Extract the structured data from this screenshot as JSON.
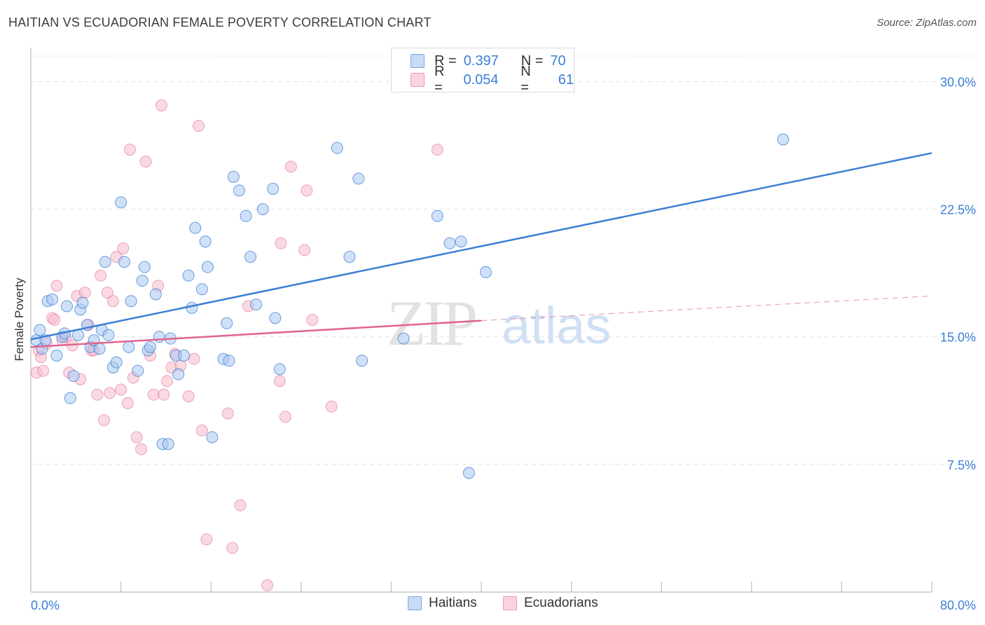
{
  "title": "HAITIAN VS ECUADORIAN FEMALE POVERTY CORRELATION CHART",
  "source": "Source: ZipAtlas.com",
  "watermark": {
    "zip": "ZIP",
    "atlas": "atlas"
  },
  "legend": {
    "rows": [
      {
        "r_label": "R =",
        "r_value": "0.397",
        "n_label": "N =",
        "n_value": "70",
        "color": "#a9c8f0"
      },
      {
        "r_label": "R =",
        "r_value": "0.054",
        "n_label": "N =",
        "n_value": "61",
        "color": "#f6b9cb"
      }
    ]
  },
  "bottom_legend": [
    "Haitians",
    "Ecuadorians"
  ],
  "chart_data": {
    "type": "scatter",
    "title": "HAITIAN VS ECUADORIAN FEMALE POVERTY CORRELATION CHART",
    "xlabel": "",
    "ylabel": "Female Poverty",
    "xlim": [
      0,
      80
    ],
    "ylim": [
      0,
      31.5
    ],
    "x_tick_labels": [
      "0.0%",
      "80.0%"
    ],
    "y_ticks": [
      7.5,
      15.0,
      22.5,
      30.0
    ],
    "y_tick_labels": [
      "7.5%",
      "15.0%",
      "22.5%",
      "30.0%"
    ],
    "grid": "horizontal dashed",
    "colors": {
      "haitians": "#3b7fd6",
      "haitians_fill": "#a9c8f0",
      "ecuadorians": "#e0648f",
      "ecuadorians_fill": "#f6b9cb"
    },
    "series": [
      {
        "name": "Haitians",
        "points": [
          [
            0.5,
            14.8
          ],
          [
            0.8,
            15.4
          ],
          [
            1.0,
            14.3
          ],
          [
            1.3,
            14.8
          ],
          [
            1.5,
            17.1
          ],
          [
            1.9,
            17.2
          ],
          [
            2.3,
            13.9
          ],
          [
            2.8,
            15.0
          ],
          [
            3.0,
            15.2
          ],
          [
            3.2,
            16.8
          ],
          [
            3.5,
            11.4
          ],
          [
            3.8,
            12.7
          ],
          [
            4.2,
            15.1
          ],
          [
            4.4,
            16.6
          ],
          [
            4.6,
            17.0
          ],
          [
            5.0,
            15.7
          ],
          [
            5.3,
            14.4
          ],
          [
            5.6,
            14.8
          ],
          [
            6.1,
            14.3
          ],
          [
            6.3,
            15.4
          ],
          [
            6.6,
            19.4
          ],
          [
            6.9,
            15.1
          ],
          [
            7.3,
            13.2
          ],
          [
            7.6,
            13.5
          ],
          [
            8.0,
            22.9
          ],
          [
            8.3,
            19.4
          ],
          [
            8.7,
            14.4
          ],
          [
            8.9,
            17.1
          ],
          [
            9.5,
            13.0
          ],
          [
            9.9,
            18.3
          ],
          [
            10.1,
            19.1
          ],
          [
            10.4,
            14.2
          ],
          [
            10.6,
            14.4
          ],
          [
            11.1,
            17.5
          ],
          [
            11.4,
            15.0
          ],
          [
            11.7,
            8.7
          ],
          [
            12.2,
            8.7
          ],
          [
            12.4,
            14.9
          ],
          [
            12.9,
            13.9
          ],
          [
            13.1,
            12.8
          ],
          [
            13.6,
            13.9
          ],
          [
            14.0,
            18.6
          ],
          [
            14.3,
            16.7
          ],
          [
            14.6,
            21.4
          ],
          [
            15.2,
            17.8
          ],
          [
            15.5,
            20.6
          ],
          [
            15.7,
            19.1
          ],
          [
            16.1,
            9.1
          ],
          [
            17.1,
            13.7
          ],
          [
            17.4,
            15.8
          ],
          [
            17.6,
            13.6
          ],
          [
            18.0,
            24.4
          ],
          [
            18.5,
            23.6
          ],
          [
            19.1,
            22.1
          ],
          [
            19.5,
            19.7
          ],
          [
            20.0,
            16.9
          ],
          [
            20.6,
            22.5
          ],
          [
            21.5,
            23.7
          ],
          [
            21.7,
            16.1
          ],
          [
            22.1,
            13.1
          ],
          [
            27.2,
            26.1
          ],
          [
            28.3,
            19.7
          ],
          [
            29.1,
            24.3
          ],
          [
            29.4,
            13.6
          ],
          [
            33.1,
            14.9
          ],
          [
            36.1,
            22.1
          ],
          [
            37.2,
            20.5
          ],
          [
            38.2,
            20.6
          ],
          [
            38.9,
            7.0
          ],
          [
            40.4,
            18.8
          ],
          [
            66.8,
            26.6
          ]
        ]
      },
      {
        "name": "Ecuadorians",
        "points": [
          [
            0.5,
            12.9
          ],
          [
            0.7,
            14.2
          ],
          [
            0.9,
            13.8
          ],
          [
            1.1,
            13.0
          ],
          [
            1.4,
            14.6
          ],
          [
            1.9,
            16.1
          ],
          [
            2.1,
            16.0
          ],
          [
            2.3,
            18.0
          ],
          [
            2.8,
            14.8
          ],
          [
            3.1,
            15.0
          ],
          [
            3.4,
            12.9
          ],
          [
            3.7,
            14.5
          ],
          [
            4.1,
            17.4
          ],
          [
            4.4,
            12.5
          ],
          [
            4.8,
            17.6
          ],
          [
            5.1,
            15.7
          ],
          [
            5.4,
            14.2
          ],
          [
            5.6,
            14.2
          ],
          [
            5.9,
            11.6
          ],
          [
            6.2,
            18.6
          ],
          [
            6.5,
            10.1
          ],
          [
            6.8,
            17.6
          ],
          [
            7.0,
            11.7
          ],
          [
            7.3,
            17.1
          ],
          [
            7.6,
            19.7
          ],
          [
            8.0,
            11.9
          ],
          [
            8.2,
            20.2
          ],
          [
            8.6,
            11.1
          ],
          [
            8.8,
            26.0
          ],
          [
            9.1,
            12.6
          ],
          [
            9.4,
            9.1
          ],
          [
            9.8,
            8.4
          ],
          [
            10.2,
            25.3
          ],
          [
            10.6,
            13.9
          ],
          [
            10.9,
            11.6
          ],
          [
            11.3,
            18.0
          ],
          [
            11.8,
            11.6
          ],
          [
            12.1,
            12.4
          ],
          [
            12.5,
            13.2
          ],
          [
            12.8,
            14.0
          ],
          [
            13.3,
            13.3
          ],
          [
            14.0,
            11.5
          ],
          [
            14.5,
            13.7
          ],
          [
            14.9,
            27.4
          ],
          [
            15.2,
            9.5
          ],
          [
            15.6,
            3.1
          ],
          [
            17.5,
            10.5
          ],
          [
            17.9,
            2.6
          ],
          [
            18.6,
            5.1
          ],
          [
            19.3,
            16.8
          ],
          [
            21.0,
            0.4
          ],
          [
            22.1,
            12.4
          ],
          [
            22.2,
            20.5
          ],
          [
            22.6,
            10.3
          ],
          [
            23.1,
            25.0
          ],
          [
            24.3,
            20.1
          ],
          [
            24.5,
            23.6
          ],
          [
            25.0,
            16.0
          ],
          [
            26.7,
            10.9
          ],
          [
            36.1,
            26.0
          ],
          [
            11.6,
            28.6
          ]
        ]
      }
    ],
    "trendlines": [
      {
        "name": "Haitians",
        "x": [
          0,
          80
        ],
        "y": [
          14.85,
          25.8
        ]
      },
      {
        "name": "Ecuadorians",
        "x": [
          0,
          40
        ],
        "y": [
          14.4,
          15.95
        ],
        "dashed_extension_to": [
          80,
          17.4
        ]
      }
    ]
  }
}
